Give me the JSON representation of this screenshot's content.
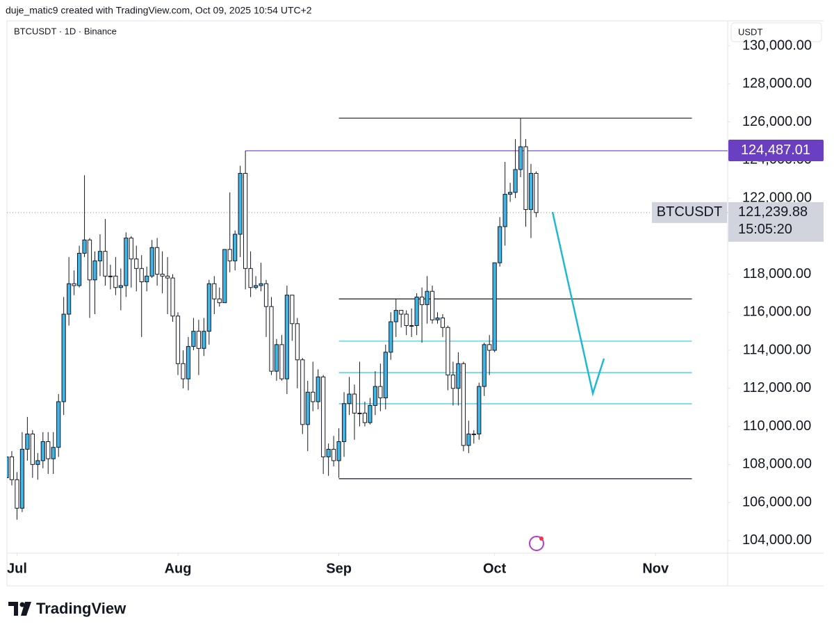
{
  "header": "duje_matic9 created with TradingView.com, Oct 09, 2025 10:54 UTC+2",
  "footer": "TradingView",
  "chart_data": {
    "type": "candlestick",
    "subtitle": "BTCUSDT · 1D · Binance",
    "currency": "USDT",
    "up_color": "#3fb4e5",
    "down_color": "#ffffff",
    "open": [
      107300,
      108400,
      107200,
      105700,
      108800,
      109600,
      108000,
      108200,
      109200,
      108300,
      108900,
      111300,
      115900,
      117500,
      117400,
      119100,
      119800,
      117700,
      118700,
      119200,
      117900,
      117900,
      117300,
      117400,
      119900,
      118800,
      118300,
      117600,
      117900,
      119400,
      118000,
      117900,
      117800,
      115800,
      113300,
      112500,
      114200,
      115000,
      114100,
      115000,
      117500,
      116700,
      116500,
      119300,
      118700,
      120100,
      123300,
      118300,
      117300,
      117400,
      117500,
      116300,
      112900,
      114300,
      112500,
      116900,
      115400,
      113500,
      110100,
      111800,
      111300,
      112600,
      108400,
      108800,
      108200,
      109200,
      111200,
      111700,
      110700,
      110700,
      110200,
      111100,
      112100,
      111500,
      113900,
      115500,
      116100,
      115900,
      115300,
      115300,
      116800,
      116400,
      117100,
      115600,
      115700,
      115200,
      112700,
      112000,
      113300,
      109000,
      109600,
      109600,
      112100,
      114300,
      114000,
      118600,
      120500,
      122200,
      122300,
      123500,
      124700,
      121400,
      123300
    ],
    "high": [
      108800,
      108700,
      107600,
      109700,
      110500,
      109800,
      108600,
      109700,
      109700,
      109700,
      111700,
      116800,
      118900,
      118200,
      119500,
      123200,
      119900,
      119200,
      120100,
      120900,
      118500,
      118900,
      118300,
      120200,
      120000,
      119500,
      119000,
      118400,
      119800,
      119900,
      119200,
      118900,
      118000,
      116000,
      114000,
      114700,
      115700,
      115600,
      115700,
      117700,
      117900,
      117300,
      119300,
      122300,
      120300,
      123700,
      124487,
      119200,
      117900,
      118600,
      117700,
      116800,
      114600,
      114800,
      117400,
      116900,
      115700,
      113600,
      112400,
      113400,
      113000,
      112700,
      109100,
      109500,
      109900,
      111800,
      112600,
      112200,
      113400,
      111300,
      111500,
      112900,
      113300,
      114300,
      116000,
      116700,
      116100,
      116100,
      116200,
      117000,
      117300,
      117900,
      117400,
      116000,
      115900,
      115300,
      113400,
      113900,
      113400,
      110300,
      109800,
      112300,
      114400,
      114800,
      118600,
      121000,
      123900,
      122800,
      125100,
      126200,
      125100,
      123800,
      123400
    ],
    "low": [
      106800,
      106900,
      105100,
      105500,
      108200,
      107300,
      107200,
      107800,
      107500,
      107500,
      108400,
      110600,
      115300,
      116900,
      117300,
      118900,
      115700,
      115900,
      117900,
      117400,
      117200,
      116900,
      116100,
      116800,
      117300,
      117100,
      114700,
      117100,
      117800,
      117400,
      117000,
      115900,
      115500,
      112700,
      112000,
      111900,
      114000,
      112700,
      113700,
      114300,
      115900,
      116300,
      116500,
      118100,
      118200,
      118900,
      117200,
      116800,
      117200,
      117100,
      114700,
      112700,
      112400,
      112400,
      111700,
      114500,
      112000,
      109600,
      108700,
      110800,
      110900,
      107500,
      107400,
      107900,
      107300,
      108400,
      110600,
      109300,
      110000,
      110000,
      110100,
      110600,
      110800,
      110900,
      113500,
      114700,
      115200,
      114800,
      114700,
      114800,
      114400,
      115400,
      115400,
      115400,
      114700,
      111900,
      111100,
      111100,
      108700,
      108600,
      109100,
      109300,
      111600,
      112700,
      113900,
      118400,
      119500,
      121800,
      122000,
      123100,
      120500,
      119900,
      121000
    ],
    "close": [
      108400,
      107200,
      105700,
      108800,
      109600,
      108000,
      108200,
      109200,
      108300,
      108900,
      111300,
      115900,
      117500,
      117400,
      119100,
      119800,
      117700,
      118700,
      119200,
      117900,
      117900,
      117300,
      117400,
      119900,
      118800,
      118300,
      117600,
      117900,
      119400,
      118000,
      117900,
      117800,
      115800,
      113300,
      112500,
      114200,
      115000,
      114100,
      115000,
      117500,
      116700,
      116500,
      119300,
      118700,
      120100,
      123300,
      118300,
      117300,
      117400,
      117500,
      116300,
      112900,
      114300,
      112500,
      116900,
      115400,
      113500,
      110100,
      111800,
      111300,
      112600,
      108400,
      108800,
      108200,
      109200,
      111200,
      111700,
      110700,
      110700,
      110200,
      111100,
      112100,
      111500,
      113900,
      115500,
      116100,
      115900,
      115300,
      115300,
      116800,
      116400,
      117100,
      115600,
      115700,
      115200,
      112700,
      112000,
      113300,
      109000,
      109600,
      109600,
      112100,
      114300,
      114000,
      118600,
      120500,
      122200,
      122300,
      123500,
      124700,
      121400,
      123300,
      121239.88
    ],
    "xlim": [
      0,
      138.9
    ],
    "xticks": [
      {
        "value": 2,
        "label": "Jul"
      },
      {
        "value": 33,
        "label": "Aug"
      },
      {
        "value": 64,
        "label": "Sep"
      },
      {
        "value": 94,
        "label": "Oct"
      },
      {
        "value": 125,
        "label": "Nov"
      }
    ],
    "ylim": [
      103338,
      131315
    ],
    "yticks": [
      {
        "value": 104000,
        "label": "104,000.00"
      },
      {
        "value": 106000,
        "label": "106,000.00"
      },
      {
        "value": 108000,
        "label": "108,000.00"
      },
      {
        "value": 110000,
        "label": "110,000.00"
      },
      {
        "value": 112000,
        "label": "112,000.00"
      },
      {
        "value": 114000,
        "label": "114,000.00"
      },
      {
        "value": 116000,
        "label": "116,000.00"
      },
      {
        "value": 118000,
        "label": "118,000.00"
      },
      {
        "value": 120000,
        "label": "120,000.00"
      },
      {
        "value": 122000,
        "label": "122,000.00"
      },
      {
        "value": 124000,
        "label": "124,000.00"
      },
      {
        "value": 126000,
        "label": "126,000.00"
      },
      {
        "value": 128000,
        "label": "128,000.00"
      },
      {
        "value": 130000,
        "label": "130,000.00"
      }
    ],
    "levels": [
      {
        "value": 126200,
        "color": "#131722"
      },
      {
        "value": 124487.01,
        "label": "124,487.01",
        "color": "#6b3fc2"
      },
      {
        "value": 116700,
        "color": "#131722"
      },
      {
        "value": 114480,
        "color": "#3cc3e6"
      },
      {
        "value": 112830,
        "color": "#3cc3e6"
      },
      {
        "value": 111190,
        "color": "#3cc3e6"
      },
      {
        "value": 107250,
        "color": "#131722"
      }
    ],
    "price_label": {
      "name": "BTCUSDT",
      "value": 121239.88,
      "label": "121,239.88",
      "countdown": "15:05:20"
    }
  }
}
